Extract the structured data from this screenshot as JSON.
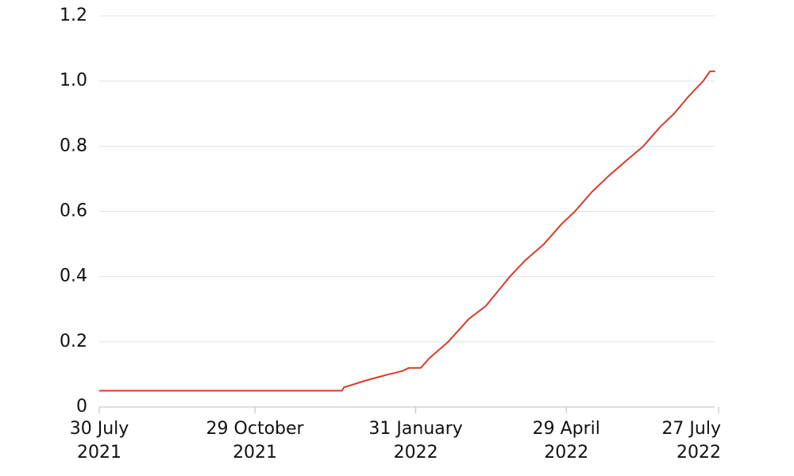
{
  "chart_data": {
    "type": "line",
    "x": [
      "2021-07-30",
      "2021-12-19",
      "2021-12-20",
      "2021-12-26",
      "2022-01-01",
      "2022-01-08",
      "2022-01-15",
      "2022-01-23",
      "2022-01-27",
      "2022-02-03",
      "2022-02-08",
      "2022-02-19",
      "2022-03-03",
      "2022-03-13",
      "2022-03-27",
      "2022-04-05",
      "2022-04-16",
      "2022-04-26",
      "2022-05-04",
      "2022-05-14",
      "2022-05-24",
      "2022-06-04",
      "2022-06-13",
      "2022-06-23",
      "2022-07-01",
      "2022-07-09",
      "2022-07-18",
      "2022-07-22",
      "2022-07-25"
    ],
    "series": [
      {
        "color": "#d83b2a",
        "values": [
          0.05,
          0.05,
          0.06,
          0.07,
          0.08,
          0.09,
          0.1,
          0.11,
          0.12,
          0.12,
          0.15,
          0.2,
          0.27,
          0.31,
          0.4,
          0.45,
          0.5,
          0.56,
          0.6,
          0.66,
          0.71,
          0.76,
          0.8,
          0.86,
          0.9,
          0.95,
          1.0,
          1.03,
          1.03
        ]
      }
    ],
    "xlim": [
      "2021-07-30",
      "2022-07-27"
    ],
    "xticks": [
      {
        "value": "2021-07-30",
        "label": [
          "30 July",
          "2021"
        ]
      },
      {
        "value": "2021-10-29",
        "label": [
          "29 October",
          "2021"
        ]
      },
      {
        "value": "2022-01-31",
        "label": [
          "31 January",
          "2022"
        ]
      },
      {
        "value": "2022-04-29",
        "label": [
          "29 April",
          "2022"
        ]
      },
      {
        "value": "2022-07-27",
        "label": [
          "27 July",
          "2022"
        ]
      }
    ],
    "ylim": [
      0,
      1.2
    ],
    "yticks": [
      0,
      0.2,
      0.4,
      0.6,
      0.8,
      {
        "value": 1,
        "label": "1.0"
      },
      1.2
    ],
    "grid": true
  }
}
